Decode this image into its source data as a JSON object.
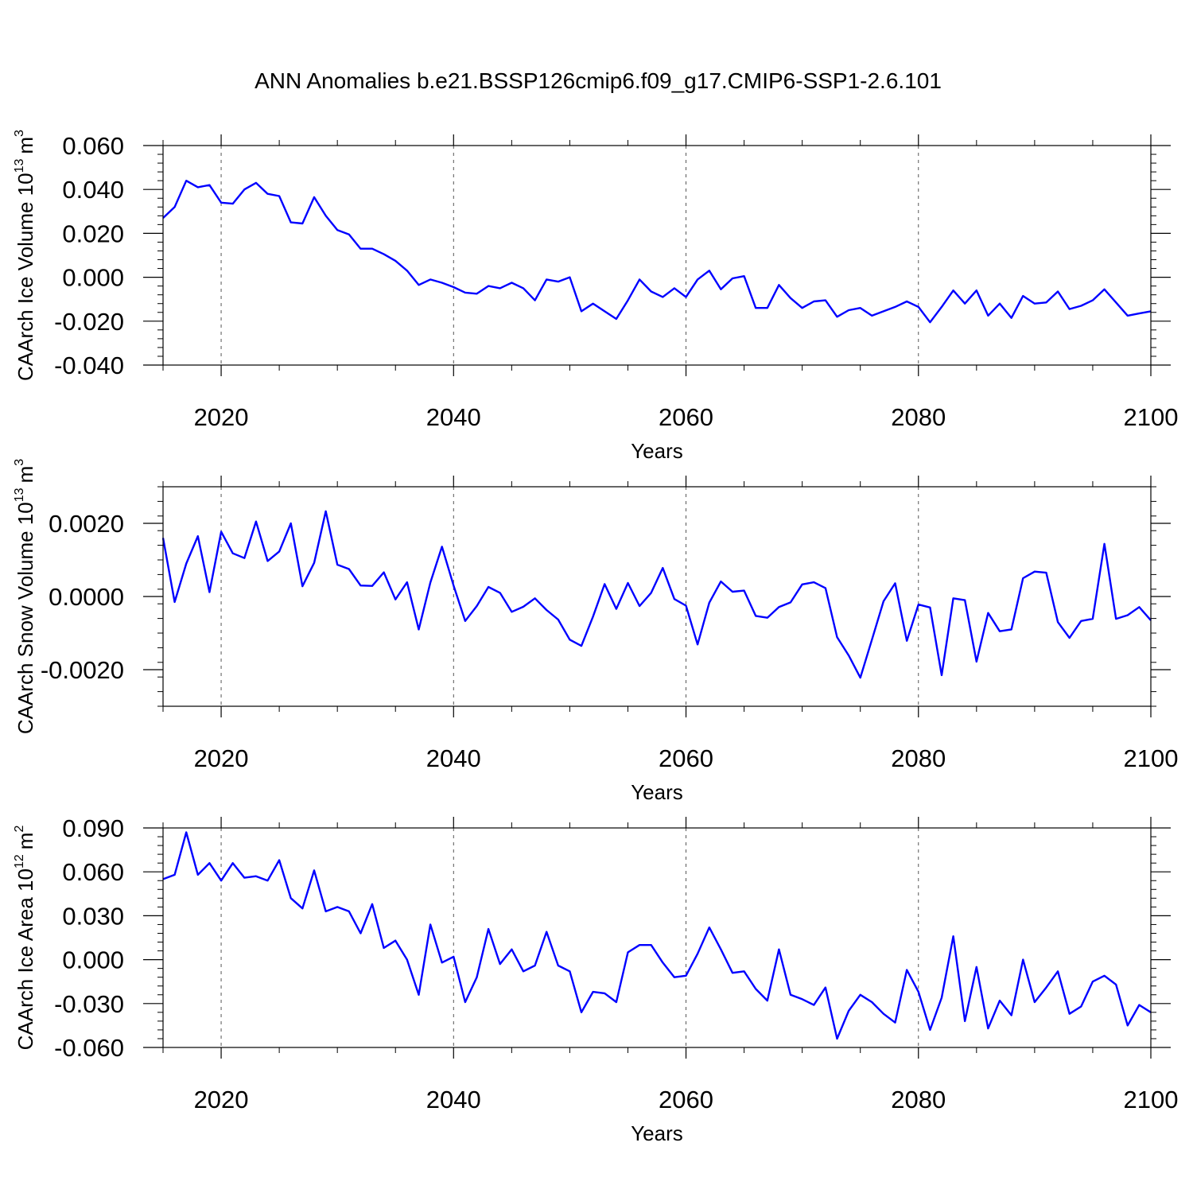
{
  "figure": {
    "title": "ANN Anomalies b.e21.BSSP126cmip6.f09_g17.CMIP6-SSP1-2.6.101"
  },
  "chart_data": [
    {
      "type": "line",
      "title": "ANN Anomalies b.e21.BSSP126cmip6.f09_g17.CMIP6-SSP1-2.6.101",
      "xlabel": "Years",
      "ylabel": "CAArch Ice Volume 10",
      "ylabel_sup": "13",
      "ylabel_unit": "m",
      "ylabel_unit_sup": "3",
      "xlim": [
        2015,
        2100
      ],
      "ylim": [
        -0.04,
        0.06
      ],
      "x_ticks": [
        2020,
        2040,
        2060,
        2080,
        2100
      ],
      "x_tick_labels": [
        "2020",
        "2040",
        "2060",
        "2080",
        "2100"
      ],
      "y_ticks": [
        -0.04,
        -0.02,
        0.0,
        0.02,
        0.04,
        0.06
      ],
      "y_tick_labels": [
        "-0.040",
        "-0.020",
        "0.000",
        "0.020",
        "0.040",
        "0.060"
      ],
      "grid": "x-dashed",
      "line_color": "#0000ff",
      "x_start": 2015,
      "x_step": 1,
      "series": [
        {
          "name": "CAArch Ice Volume",
          "values": [
            0.027,
            0.032,
            0.044,
            0.041,
            0.042,
            0.034,
            0.0335,
            0.04,
            0.043,
            0.038,
            0.037,
            0.025,
            0.0245,
            0.0365,
            0.028,
            0.0215,
            0.0195,
            0.013,
            0.013,
            0.0105,
            0.0075,
            0.003,
            -0.0035,
            -0.001,
            -0.0025,
            -0.0045,
            -0.007,
            -0.0075,
            -0.004,
            -0.005,
            -0.0025,
            -0.005,
            -0.0105,
            -0.001,
            -0.002,
            0.0,
            -0.0155,
            -0.012,
            -0.0155,
            -0.019,
            -0.0105,
            -0.001,
            -0.0065,
            -0.009,
            -0.005,
            -0.009,
            -0.001,
            0.003,
            -0.0055,
            -0.0005,
            0.0005,
            -0.014,
            -0.014,
            -0.0035,
            -0.0095,
            -0.014,
            -0.011,
            -0.0105,
            -0.018,
            -0.015,
            -0.014,
            -0.0175,
            -0.0155,
            -0.0135,
            -0.011,
            -0.0135,
            -0.0205,
            -0.0135,
            -0.006,
            -0.012,
            -0.006,
            -0.0175,
            -0.012,
            -0.0185,
            -0.0085,
            -0.012,
            -0.0115,
            -0.0065,
            -0.0145,
            -0.013,
            -0.0105,
            -0.0055,
            -0.0115,
            -0.0175,
            -0.0165,
            -0.0155
          ]
        }
      ]
    },
    {
      "type": "line",
      "xlabel": "Years",
      "ylabel": "CAArch Snow Volume 10",
      "ylabel_sup": "13",
      "ylabel_unit": "m",
      "ylabel_unit_sup": "3",
      "xlim": [
        2015,
        2100
      ],
      "ylim": [
        -0.003,
        0.003
      ],
      "x_ticks": [
        2020,
        2040,
        2060,
        2080,
        2100
      ],
      "x_tick_labels": [
        "2020",
        "2040",
        "2060",
        "2080",
        "2100"
      ],
      "y_ticks": [
        -0.002,
        0.0,
        0.002
      ],
      "y_tick_labels": [
        "-0.0020",
        "0.0000",
        "0.0020"
      ],
      "grid": "x-dashed",
      "line_color": "#0000ff",
      "x_start": 2015,
      "x_step": 1,
      "series": [
        {
          "name": "CAArch Snow Volume",
          "values": [
            0.0016,
            -0.00015,
            0.0009,
            0.00165,
            0.00012,
            0.00177,
            0.00118,
            0.00105,
            0.00205,
            0.00097,
            0.00123,
            0.002,
            0.00028,
            0.00092,
            0.00233,
            0.00087,
            0.00075,
            0.0003,
            0.00029,
            0.00066,
            -8e-05,
            0.00039,
            -0.0009,
            0.00038,
            0.00136,
            0.0003,
            -0.00067,
            -0.00026,
            0.00026,
            0.0001,
            -0.00042,
            -0.00028,
            -5e-05,
            -0.00037,
            -0.00063,
            -0.00118,
            -0.00135,
            -0.00055,
            0.00034,
            -0.00034,
            0.00037,
            -0.00026,
            0.0001,
            0.00078,
            -7e-05,
            -0.00025,
            -0.00131,
            -0.00017,
            0.00041,
            0.00013,
            0.00016,
            -0.00053,
            -0.00058,
            -0.00029,
            -0.00016,
            0.00033,
            0.00039,
            0.00023,
            -0.00111,
            -0.00161,
            -0.00222,
            -0.00118,
            -0.00013,
            0.00036,
            -0.00121,
            -0.00022,
            -0.0003,
            -0.00215,
            -5e-05,
            -0.0001,
            -0.00178,
            -0.00045,
            -0.00095,
            -0.0009,
            0.0005,
            0.00068,
            0.00065,
            -0.0007,
            -0.00113,
            -0.00067,
            -0.00061,
            0.00144,
            -0.00061,
            -0.00051,
            -0.00029,
            -0.00065
          ]
        }
      ]
    },
    {
      "type": "line",
      "xlabel": "Years",
      "ylabel": "CAArch Ice Area 10",
      "ylabel_sup": "12",
      "ylabel_unit": "m",
      "ylabel_unit_sup": "2",
      "xlim": [
        2015,
        2100
      ],
      "ylim": [
        -0.06,
        0.09
      ],
      "x_ticks": [
        2020,
        2040,
        2060,
        2080,
        2100
      ],
      "x_tick_labels": [
        "2020",
        "2040",
        "2060",
        "2080",
        "2100"
      ],
      "y_ticks": [
        -0.06,
        -0.03,
        0.0,
        0.03,
        0.06,
        0.09
      ],
      "y_tick_labels": [
        "-0.060",
        "-0.030",
        "0.000",
        "0.030",
        "0.060",
        "0.090"
      ],
      "grid": "x-dashed",
      "line_color": "#0000ff",
      "x_start": 2015,
      "x_step": 1,
      "series": [
        {
          "name": "CAArch Ice Area",
          "values": [
            0.055,
            0.058,
            0.087,
            0.058,
            0.066,
            0.054,
            0.066,
            0.056,
            0.057,
            0.054,
            0.068,
            0.042,
            0.035,
            0.061,
            0.033,
            0.036,
            0.033,
            0.018,
            0.038,
            0.008,
            0.013,
            0.0,
            -0.024,
            0.024,
            -0.002,
            0.002,
            -0.029,
            -0.012,
            0.021,
            -0.003,
            0.007,
            -0.008,
            -0.004,
            0.019,
            -0.004,
            -0.008,
            -0.036,
            -0.022,
            -0.023,
            -0.029,
            0.005,
            0.01,
            0.01,
            -0.002,
            -0.012,
            -0.011,
            0.004,
            0.022,
            0.007,
            -0.009,
            -0.008,
            -0.02,
            -0.028,
            0.007,
            -0.024,
            -0.027,
            -0.031,
            -0.019,
            -0.054,
            -0.035,
            -0.024,
            -0.029,
            -0.037,
            -0.043,
            -0.007,
            -0.022,
            -0.048,
            -0.026,
            0.016,
            -0.042,
            -0.005,
            -0.047,
            -0.028,
            -0.038,
            0.0,
            -0.029,
            -0.019,
            -0.008,
            -0.037,
            -0.032,
            -0.015,
            -0.011,
            -0.017,
            -0.045,
            -0.031,
            -0.036
          ]
        }
      ]
    }
  ]
}
